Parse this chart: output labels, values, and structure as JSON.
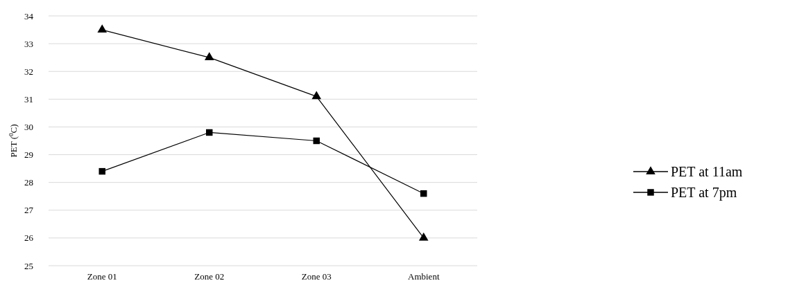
{
  "chart_data": {
    "type": "line",
    "ylabel": "PET ($^{0}$C)",
    "categories": [
      "Zone 01",
      "Zone 02",
      "Zone 03",
      "Ambient"
    ],
    "series": [
      {
        "name": "PET at 11am",
        "color": "#000000",
        "marker": "triangle",
        "values": [
          33.5,
          32.5,
          31.1,
          26.0
        ]
      },
      {
        "name": "PET at 7pm",
        "color": "#000000",
        "marker": "square",
        "values": [
          28.4,
          29.8,
          29.5,
          27.6
        ]
      }
    ],
    "ylim": [
      25,
      34
    ],
    "yticks": [
      25,
      26,
      27,
      28,
      29,
      30,
      31,
      32,
      33,
      34
    ],
    "grid": "y",
    "legend": "right",
    "line_style": "solid"
  }
}
